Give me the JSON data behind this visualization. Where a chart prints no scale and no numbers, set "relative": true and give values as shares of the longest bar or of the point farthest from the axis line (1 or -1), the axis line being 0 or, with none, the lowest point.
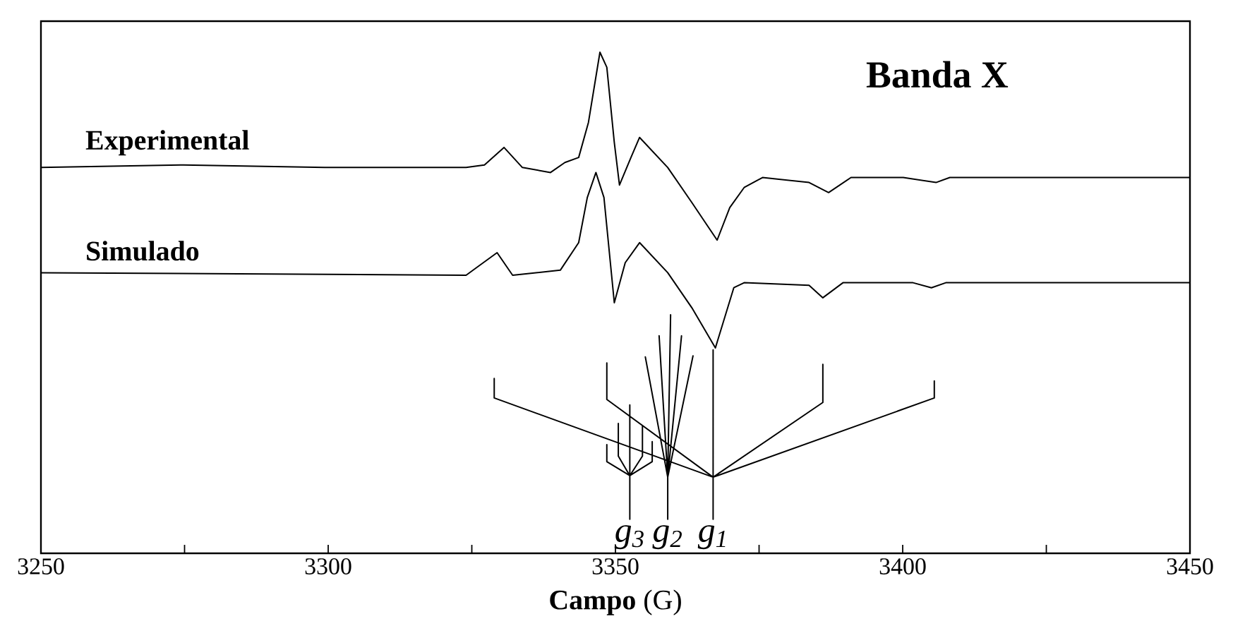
{
  "chart_data": {
    "type": "line",
    "title": "Banda X",
    "xlabel": "**Campo** (G)",
    "relative": true,
    "xlim": [
      3250,
      3450
    ],
    "xticks": [
      3250,
      {
        "value": 3275,
        "label": null
      },
      3300,
      {
        "value": 3325,
        "label": null
      },
      3350,
      {
        "value": 3375,
        "label": null
      },
      3400,
      {
        "value": 3425,
        "label": null
      },
      3450
    ],
    "series": [
      {
        "name": "Experimental",
        "color": "#000000",
        "x": [
          3250,
          3274.8,
          3299.4,
          3324.0,
          3327.2,
          3330.6,
          3333.8,
          3338.7,
          3341.2,
          3343.6,
          3345.3,
          3347.3,
          3348.5,
          3349.8,
          3350.7,
          3352.7,
          3354.2,
          3359.1,
          3363.3,
          3367.7,
          3369.9,
          3372.4,
          3375.6,
          3383.7,
          3387.1,
          3391.0,
          3400.1,
          3405.8,
          3408.2,
          3424.7,
          3450
        ],
        "values": [
          0.77,
          0.775,
          0.77,
          0.77,
          0.775,
          0.81,
          0.77,
          0.76,
          0.78,
          0.79,
          0.86,
          1.0,
          0.97,
          0.82,
          0.735,
          0.79,
          0.83,
          0.77,
          0.7,
          0.625,
          0.69,
          0.73,
          0.75,
          0.74,
          0.72,
          0.75,
          0.75,
          0.74,
          0.75,
          0.75,
          0.75
        ]
      },
      {
        "name": "Simulado",
        "color": "#000000",
        "x": [
          3250,
          3324.0,
          3326.4,
          3329.4,
          3332.1,
          3340.4,
          3343.6,
          3345.1,
          3346.6,
          3348.0,
          3349.8,
          3351.7,
          3354.2,
          3359.1,
          3363.3,
          3367.4,
          3370.6,
          3372.4,
          3383.7,
          3386.1,
          3389.6,
          3401.8,
          3405.0,
          3407.5,
          3450
        ],
        "values": [
          0.56,
          0.555,
          0.575,
          0.6,
          0.555,
          0.565,
          0.62,
          0.71,
          0.76,
          0.71,
          0.5,
          0.58,
          0.62,
          0.56,
          0.49,
          0.41,
          0.53,
          0.54,
          0.535,
          0.51,
          0.54,
          0.54,
          0.53,
          0.54,
          0.54
        ]
      },
      {
        "color": "#000000",
        "x": [
          3367.0,
          3367.0,
          null,
          3328.9,
          3328.9,
          3367.0,
          3348.5,
          3348.5,
          null,
          3386.1,
          3386.1,
          3367.0,
          3405.5,
          3405.5,
          null,
          3359.1,
          3359.1,
          null,
          3355.2,
          3359.1,
          3357.6,
          null,
          3359.6,
          3359.1,
          3361.5,
          null,
          3363.5,
          3359.1,
          null,
          3352.5,
          3352.5,
          null,
          3348.5,
          3348.5,
          3352.5,
          3356.4,
          3356.4,
          null,
          3350.5,
          3350.5,
          3352.5,
          3354.7,
          3354.7
        ],
        "values": [
          0.406,
          0.068,
          null,
          0.349,
          0.31,
          0.152,
          0.307,
          0.38,
          null,
          0.377,
          0.301,
          0.152,
          0.31,
          0.344,
          null,
          0.152,
          0.068,
          null,
          0.392,
          0.152,
          0.434,
          null,
          0.476,
          0.152,
          0.434,
          null,
          0.394,
          0.152,
          null,
          0.296,
          0.068,
          null,
          0.217,
          0.183,
          0.155,
          0.183,
          0.223,
          null,
          0.259,
          0.194,
          0.155,
          0.194,
          0.254
        ]
      }
    ],
    "annotations": [
      {
        "text": "g$_{3}$",
        "x": 3352.5,
        "y": 0.068
      },
      {
        "text": "g$_{2}$",
        "x": 3359.1,
        "y": 0.068
      },
      {
        "text": "g$_{1}$",
        "x": 3367.0,
        "y": 0.068
      }
    ]
  }
}
